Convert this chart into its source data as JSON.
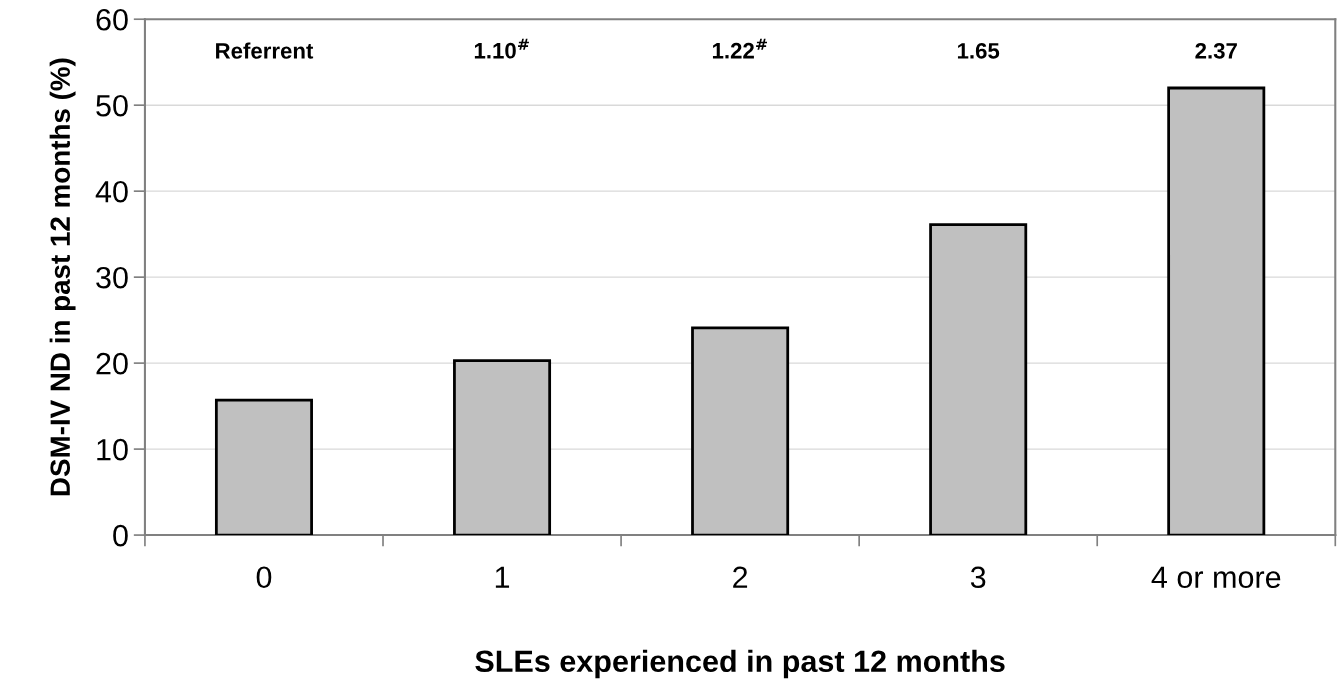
{
  "chart_data": {
    "type": "bar",
    "xlabel": "SLEs experienced in past 12 months",
    "ylabel": "DSM-IV ND in past 12 months (%)",
    "categories": [
      "0",
      "1",
      "2",
      "3",
      "4 or more"
    ],
    "values": [
      15.7,
      20.3,
      24.1,
      36.1,
      52.0
    ],
    "color": "#c0c0c0",
    "ylim": [
      0,
      60
    ],
    "yticks": [
      0,
      10,
      20,
      30,
      40,
      50,
      60
    ],
    "grid": "y",
    "annotations": [
      "Referrent",
      "1.10$^{#}$",
      "1.22$^{#}$",
      "1.65",
      "2.37"
    ]
  }
}
